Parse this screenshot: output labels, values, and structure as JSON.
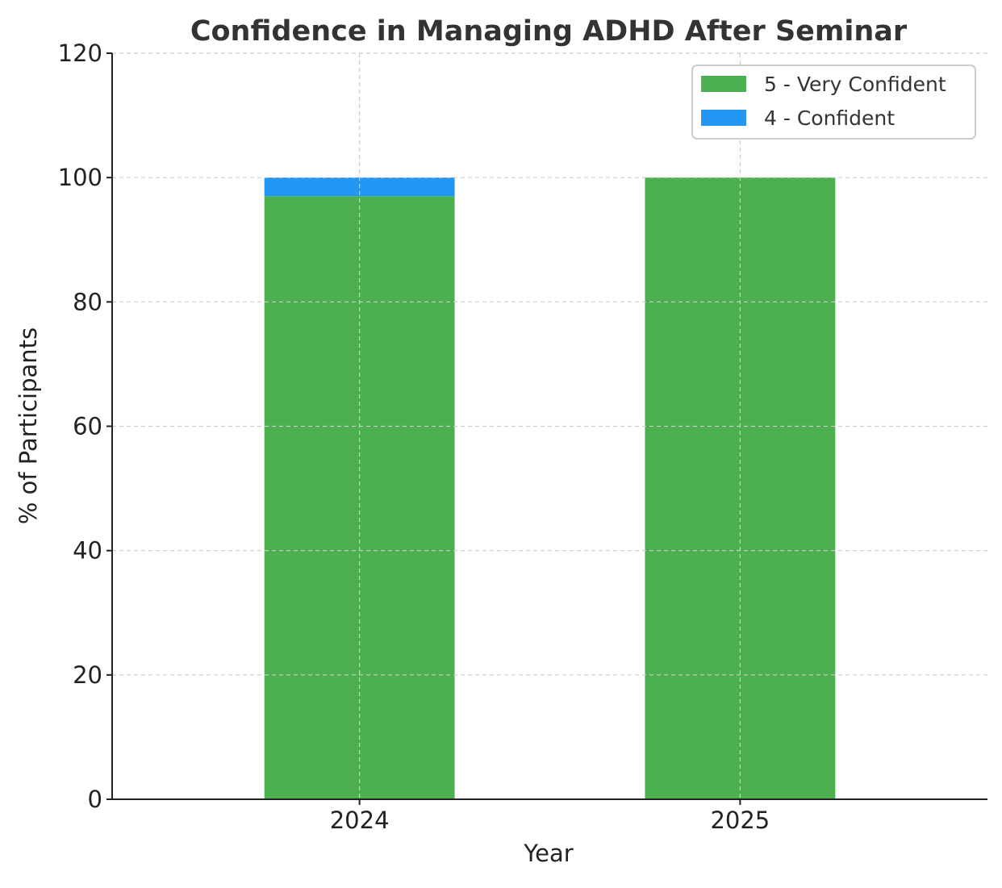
{
  "chart_data": {
    "type": "bar",
    "stacked": true,
    "title": "Confidence in Managing ADHD After Seminar",
    "xlabel": "Year",
    "ylabel": "% of Participants",
    "categories": [
      "2024",
      "2025"
    ],
    "series": [
      {
        "name": "5 - Very Confident",
        "values": [
          97,
          100
        ],
        "color": "#4caf50"
      },
      {
        "name": "4 - Confident",
        "values": [
          3,
          0
        ],
        "color": "#2196f3"
      }
    ],
    "ylim": [
      0,
      120
    ],
    "yticks": [
      "0",
      "20",
      "40",
      "60",
      "80",
      "100",
      "120"
    ],
    "grid": true,
    "legend_position": "top-right"
  }
}
